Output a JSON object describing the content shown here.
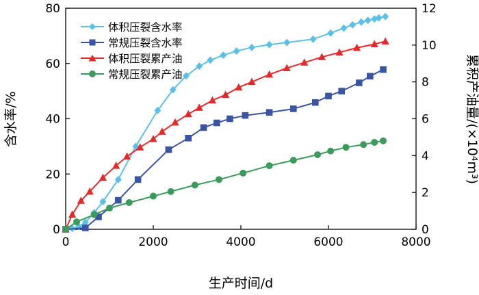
{
  "chart_data": {
    "type": "line",
    "xlabel": "生产时间/d",
    "ylabel_left": "含水率/%",
    "ylabel_right": "累积产油量/(×10⁴m³)",
    "xlim": [
      0,
      8000
    ],
    "ylim_left": [
      0,
      80
    ],
    "ylim_right": [
      0,
      12
    ],
    "x_ticks": [
      "0",
      "2000",
      "4000",
      "6000",
      "8000"
    ],
    "y_ticks_left": [
      "0",
      "20",
      "40",
      "60",
      "80"
    ],
    "y_ticks_right": [
      "0",
      "2",
      "4",
      "6",
      "8",
      "10",
      "12"
    ],
    "grid": false,
    "legend_position": "top-left",
    "series": [
      {
        "name": "体积压裂含水率",
        "axis": "left",
        "color": "#5bc0e8",
        "marker": "diamond",
        "x": [
          0,
          150,
          300,
          450,
          650,
          850,
          1200,
          1600,
          2100,
          2450,
          2750,
          3050,
          3300,
          3600,
          3900,
          4250,
          4650,
          5050,
          5650,
          6050,
          6350,
          6550,
          6750,
          6900,
          7050,
          7150,
          7300
        ],
        "y": [
          0,
          0.3,
          1,
          2.5,
          6,
          10,
          18,
          30,
          43,
          50.5,
          55.5,
          59,
          61.2,
          63,
          64.5,
          65.8,
          66.8,
          67.6,
          68.8,
          71,
          72.8,
          74,
          75,
          75.6,
          76.1,
          76.5,
          77
        ]
      },
      {
        "name": "常规压裂含水率",
        "axis": "left",
        "color": "#3a54a4",
        "marker": "square",
        "x": [
          0,
          450,
          750,
          1200,
          1650,
          2350,
          2800,
          3150,
          3450,
          3750,
          4100,
          4650,
          5200,
          5700,
          6000,
          6300,
          6700,
          6950,
          7250
        ],
        "y": [
          0,
          0.5,
          4.5,
          10.5,
          18,
          28.8,
          33,
          36.8,
          38.5,
          40,
          41.2,
          42.3,
          43.6,
          45.9,
          48.2,
          50,
          53,
          55.4,
          57.8
        ]
      },
      {
        "name": "体积压裂累产油",
        "axis": "right",
        "color": "#e62a2a",
        "marker": "triangle",
        "x": [
          0,
          150,
          350,
          550,
          850,
          1150,
          1400,
          1700,
          2000,
          2200,
          2500,
          2800,
          3050,
          3350,
          3650,
          3950,
          4250,
          4650,
          5050,
          5450,
          5850,
          6250,
          6650,
          7050,
          7300
        ],
        "y": [
          0,
          0.8,
          1.55,
          2.05,
          2.8,
          3.45,
          3.95,
          4.45,
          4.9,
          5.3,
          5.8,
          6.25,
          6.6,
          7,
          7.3,
          7.7,
          8.0,
          8.4,
          8.75,
          9.05,
          9.35,
          9.6,
          9.85,
          10.05,
          10.2
        ]
      },
      {
        "name": "常规压裂累产油",
        "axis": "right",
        "color": "#3c9a5a",
        "marker": "circle",
        "x": [
          0,
          250,
          650,
          1000,
          1450,
          2000,
          2400,
          2950,
          3500,
          4050,
          4650,
          5200,
          5750,
          6050,
          6400,
          6800,
          7050,
          7250
        ],
        "y": [
          0,
          0.4,
          0.8,
          1.15,
          1.45,
          1.8,
          2.05,
          2.4,
          2.7,
          3.05,
          3.45,
          3.75,
          4.05,
          4.25,
          4.45,
          4.6,
          4.72,
          4.8
        ]
      }
    ]
  }
}
